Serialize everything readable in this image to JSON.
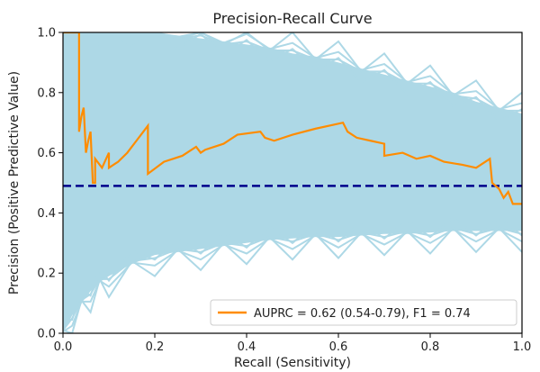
{
  "chart_data": {
    "type": "line",
    "title": "Precision-Recall Curve",
    "xlabel": "Recall (Sensitivity)",
    "ylabel": "Precision (Positive Predictive Value)",
    "xlim": [
      0.0,
      1.0
    ],
    "ylim": [
      0.0,
      1.0
    ],
    "xticks": [
      "0.0",
      "0.2",
      "0.4",
      "0.6",
      "0.8",
      "1.0"
    ],
    "yticks": [
      "0.0",
      "0.2",
      "0.4",
      "0.6",
      "0.8",
      "1.0"
    ],
    "grid": false,
    "legend_position": "lower-right",
    "colors": {
      "main_curve": "#ff8c00",
      "bootstrap_band": "#add8e6",
      "baseline": "#00008b"
    },
    "baseline": {
      "y": 0.49,
      "style": "dashed"
    },
    "series": [
      {
        "name": "AUPRC = 0.62 (0.54-0.79), F1 = 0.74",
        "x": [
          0.0,
          0.035,
          0.035,
          0.04,
          0.045,
          0.05,
          0.055,
          0.06,
          0.065,
          0.07,
          0.07,
          0.085,
          0.1,
          0.1,
          0.12,
          0.14,
          0.16,
          0.185,
          0.185,
          0.22,
          0.26,
          0.29,
          0.3,
          0.31,
          0.35,
          0.38,
          0.43,
          0.44,
          0.46,
          0.5,
          0.55,
          0.61,
          0.62,
          0.64,
          0.67,
          0.7,
          0.7,
          0.74,
          0.77,
          0.8,
          0.83,
          0.87,
          0.9,
          0.93,
          0.935,
          0.95,
          0.96,
          0.97,
          0.98,
          1.0
        ],
        "y": [
          1.0,
          1.0,
          0.67,
          0.72,
          0.75,
          0.6,
          0.64,
          0.67,
          0.5,
          0.5,
          0.58,
          0.55,
          0.6,
          0.55,
          0.57,
          0.6,
          0.64,
          0.69,
          0.53,
          0.57,
          0.59,
          0.62,
          0.6,
          0.61,
          0.63,
          0.66,
          0.67,
          0.65,
          0.64,
          0.66,
          0.68,
          0.7,
          0.67,
          0.65,
          0.64,
          0.63,
          0.59,
          0.6,
          0.58,
          0.59,
          0.57,
          0.56,
          0.55,
          0.58,
          0.5,
          0.48,
          0.45,
          0.47,
          0.43,
          0.43
        ]
      }
    ],
    "bootstrap_band": {
      "x": [
        0.0,
        0.02,
        0.04,
        0.06,
        0.08,
        0.1,
        0.15,
        0.2,
        0.25,
        0.3,
        0.35,
        0.4,
        0.45,
        0.5,
        0.55,
        0.6,
        0.65,
        0.7,
        0.75,
        0.8,
        0.85,
        0.9,
        0.95,
        1.0
      ],
      "upper": [
        1.0,
        1.0,
        1.0,
        1.0,
        1.0,
        1.0,
        1.0,
        1.0,
        0.99,
        0.98,
        0.97,
        0.96,
        0.95,
        0.93,
        0.92,
        0.9,
        0.88,
        0.86,
        0.84,
        0.82,
        0.8,
        0.77,
        0.75,
        0.73
      ],
      "lower": [
        0.0,
        0.06,
        0.1,
        0.14,
        0.17,
        0.19,
        0.23,
        0.26,
        0.27,
        0.28,
        0.29,
        0.3,
        0.31,
        0.315,
        0.32,
        0.32,
        0.325,
        0.33,
        0.33,
        0.335,
        0.34,
        0.34,
        0.34,
        0.34
      ]
    }
  }
}
